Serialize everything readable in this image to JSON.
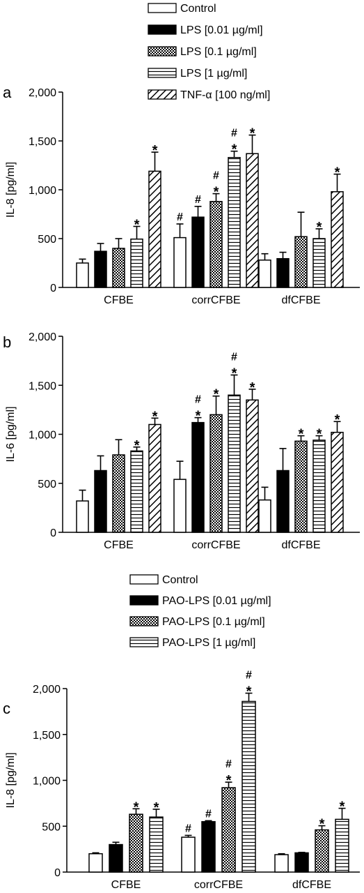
{
  "legend_top": {
    "items": [
      {
        "label": "Control",
        "pattern": "white"
      },
      {
        "label": "LPS [0.01 µg/ml]",
        "pattern": "black"
      },
      {
        "label": "LPS [0.1 µg/ml]",
        "pattern": "checker"
      },
      {
        "label": "LPS [1 µg/ml]",
        "pattern": "hlines"
      },
      {
        "label": "TNF-α [100 ng/ml]",
        "pattern": "diag"
      }
    ]
  },
  "legend_bottom": {
    "items": [
      {
        "label": "Control",
        "pattern": "white"
      },
      {
        "label": "PAO-LPS [0.01 µg/ml]",
        "pattern": "black"
      },
      {
        "label": "PAO-LPS [0.1 µg/ml]",
        "pattern": "checker"
      },
      {
        "label": "PAO-LPS [1 µg/ml]",
        "pattern": "hlines"
      }
    ]
  },
  "chart_data": [
    {
      "panel": "a",
      "type": "bar",
      "ylabel": "IL-8 [pg/ml]",
      "xlabel": "",
      "ylim": [
        0,
        2000
      ],
      "yticks": [
        0,
        500,
        1000,
        1500,
        2000
      ],
      "ytick_labels": [
        "0",
        "500",
        "1,000",
        "1,500",
        "2,000"
      ],
      "categories": [
        "CFBE",
        "corrCFBE",
        "dfCFBE"
      ],
      "series": [
        {
          "name": "Control",
          "pattern": "white",
          "values": [
            250,
            510,
            280
          ],
          "errors": [
            40,
            140,
            65
          ],
          "marks": [
            "",
            "#",
            ""
          ]
        },
        {
          "name": "LPS [0.01 µg/ml]",
          "pattern": "black",
          "values": [
            370,
            720,
            295
          ],
          "errors": [
            80,
            110,
            65
          ],
          "marks": [
            "",
            "#",
            ""
          ]
        },
        {
          "name": "LPS [0.1 µg/ml]",
          "pattern": "checker",
          "values": [
            400,
            880,
            520
          ],
          "errors": [
            100,
            80,
            250
          ],
          "marks": [
            "",
            "*#",
            ""
          ]
        },
        {
          "name": "LPS [1 µg/ml]",
          "pattern": "hlines",
          "values": [
            495,
            1330,
            500
          ],
          "errors": [
            130,
            65,
            100
          ],
          "marks": [
            "*",
            "*#",
            "*"
          ]
        },
        {
          "name": "TNF-α [100 ng/ml]",
          "pattern": "diag",
          "values": [
            1190,
            1370,
            980
          ],
          "errors": [
            195,
            190,
            180
          ],
          "marks": [
            "*",
            "*",
            "*"
          ]
        }
      ]
    },
    {
      "panel": "b",
      "type": "bar",
      "ylabel": "IL-6 [pg/ml]",
      "xlabel": "",
      "ylim": [
        0,
        2000
      ],
      "yticks": [
        0,
        500,
        1000,
        1500,
        2000
      ],
      "ytick_labels": [
        "0",
        "500",
        "1,000",
        "1,500",
        "2,000"
      ],
      "categories": [
        "CFBE",
        "corrCFBE",
        "dfCFBE"
      ],
      "series": [
        {
          "name": "Control",
          "pattern": "white",
          "values": [
            320,
            540,
            330
          ],
          "errors": [
            110,
            185,
            130
          ],
          "marks": [
            "",
            "",
            ""
          ]
        },
        {
          "name": "LPS [0.01 µg/ml]",
          "pattern": "black",
          "values": [
            630,
            1120,
            630
          ],
          "errors": [
            150,
            50,
            225
          ],
          "marks": [
            "",
            "*#",
            ""
          ]
        },
        {
          "name": "LPS [0.1 µg/ml]",
          "pattern": "checker",
          "values": [
            790,
            1200,
            930
          ],
          "errors": [
            155,
            190,
            55
          ],
          "marks": [
            "",
            "*",
            "*"
          ]
        },
        {
          "name": "LPS [1 µg/ml]",
          "pattern": "hlines",
          "values": [
            830,
            1400,
            940
          ],
          "errors": [
            40,
            205,
            45
          ],
          "marks": [
            "*",
            "*#",
            "*"
          ]
        },
        {
          "name": "TNF-α [100 ng/ml]",
          "pattern": "diag",
          "values": [
            1100,
            1350,
            1020
          ],
          "errors": [
            65,
            110,
            110
          ],
          "marks": [
            "*",
            "*",
            "*"
          ]
        }
      ]
    },
    {
      "panel": "c",
      "type": "bar",
      "ylabel": "IL-8 [pg/ml]",
      "xlabel": "",
      "ylim": [
        0,
        2000
      ],
      "yticks": [
        0,
        500,
        1000,
        1500,
        2000
      ],
      "ytick_labels": [
        "0",
        "500",
        "1,000",
        "1,500",
        "2,000"
      ],
      "categories": [
        "CFBE",
        "corrCFBE",
        "dfCFBE"
      ],
      "series": [
        {
          "name": "Control",
          "pattern": "white",
          "values": [
            200,
            380,
            190
          ],
          "errors": [
            10,
            20,
            10
          ],
          "marks": [
            "",
            "#",
            ""
          ]
        },
        {
          "name": "PAO-LPS [0.01 µg/ml]",
          "pattern": "black",
          "values": [
            300,
            550,
            210
          ],
          "errors": [
            25,
            10,
            5
          ],
          "marks": [
            "",
            "#",
            ""
          ]
        },
        {
          "name": "PAO-LPS [0.1 µg/ml]",
          "pattern": "checker",
          "values": [
            630,
            920,
            460
          ],
          "errors": [
            60,
            60,
            45
          ],
          "marks": [
            "*",
            "*#",
            "*"
          ]
        },
        {
          "name": "PAO-LPS [1 µg/ml]",
          "pattern": "hlines",
          "values": [
            600,
            1860,
            575
          ],
          "errors": [
            85,
            90,
            120
          ],
          "marks": [
            "*",
            "*#",
            "*"
          ]
        }
      ]
    }
  ]
}
